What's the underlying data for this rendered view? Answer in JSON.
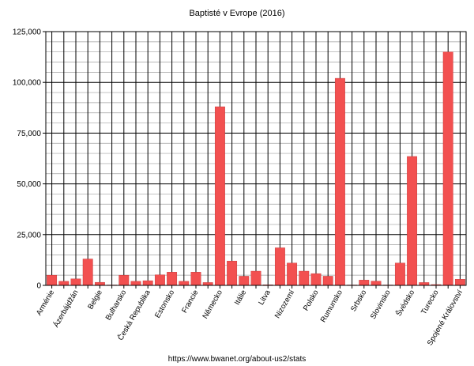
{
  "chart_data": {
    "type": "bar",
    "title": "Baptisté v Evrope (2016)",
    "source": "https://www.bwanet.org/about-us2/stats",
    "xlabel": "",
    "ylabel": "",
    "ylim": [
      0,
      125000
    ],
    "yticks": [
      0,
      25000,
      50000,
      75000,
      100000,
      125000
    ],
    "ytick_labels": [
      "0",
      "25,000",
      "50,000",
      "75,000",
      "100,000",
      "125,000"
    ],
    "grid": true,
    "legend": "none",
    "bar_color": "#f25050",
    "categories": [
      "Arménie",
      "",
      "Ázerbájdžán",
      "",
      "Belgie",
      "",
      "Bulharsko",
      "",
      "Česká Republika",
      "",
      "Estonsko",
      "",
      "Francie",
      "",
      "Německo",
      "",
      "Itálie",
      "",
      "Litva",
      "",
      "Nizozemí",
      "",
      "Polsko",
      "",
      "Rumunsko",
      "",
      "Srbsko",
      "",
      "Slovinsko",
      "",
      "Švédsko",
      "",
      "Turecko",
      "",
      "Spojené Království"
    ],
    "values": [
      5000,
      2000,
      3200,
      13000,
      1500,
      200,
      5000,
      2000,
      2300,
      5200,
      6500,
      2000,
      6500,
      1400,
      88000,
      12000,
      4500,
      7000,
      300,
      18500,
      11000,
      7000,
      5800,
      4500,
      102000,
      200,
      2600,
      2100,
      200,
      11000,
      63500,
      1400,
      400,
      115000,
      3000
    ]
  }
}
